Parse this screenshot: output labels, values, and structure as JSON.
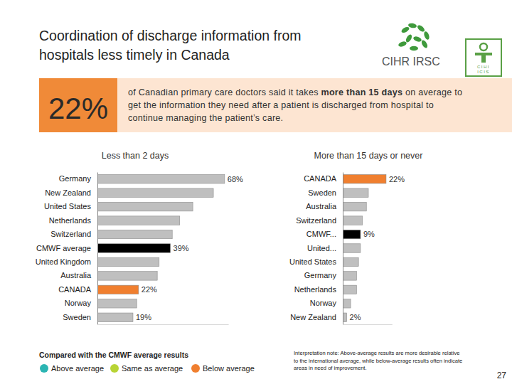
{
  "page": {
    "title": [
      "Coordination of discharge information from",
      "hospitals less timely in Canada"
    ],
    "logos": {
      "cihr": "CIHR IRSC",
      "cihi": [
        "CIHI",
        "ICIS"
      ]
    },
    "callout": {
      "figure": "22%",
      "text_before": "of Canadian primary care doctors said it takes ",
      "text_bold": "more than 15 days",
      "text_after": " on average to get the information they need after a patient is discharged from hospital to continue managing the patient’s care."
    },
    "legend": {
      "title": "Compared with the CMWF average results",
      "items": [
        {
          "label": "Above average",
          "color": "#2bb5b3"
        },
        {
          "label": "Same as average",
          "color": "#b8d435"
        },
        {
          "label": "Below average",
          "color": "#f07f2f"
        }
      ]
    },
    "note": [
      "Interpretation note: Above-average results are more desirable relative",
      "to the international average, while below-average results often indicate",
      "areas in need of improvement."
    ],
    "page_number": 27
  },
  "chart_data": [
    {
      "type": "bar",
      "orientation": "horizontal",
      "title": "Less than 2 days",
      "categories": [
        "Germany",
        "New Zealand",
        "United States",
        "Netherlands",
        "Switzerland",
        "CMWF average",
        "United Kingdom",
        "Australia",
        "CANADA",
        "Norway",
        "Sweden"
      ],
      "values": [
        68,
        62,
        51,
        44,
        40,
        39,
        33,
        32,
        22,
        21,
        19
      ],
      "value_labels": [
        "68%",
        null,
        null,
        null,
        null,
        "39%",
        null,
        null,
        "22%",
        null,
        "19%"
      ],
      "colors": [
        "#bfbfbf",
        "#bfbfbf",
        "#bfbfbf",
        "#bfbfbf",
        "#bfbfbf",
        "#000000",
        "#bfbfbf",
        "#bfbfbf",
        "#f07f2f",
        "#bfbfbf",
        "#bfbfbf"
      ],
      "xlim": [
        0,
        70
      ],
      "data_labels": true,
      "tick_labels": "y",
      "grid": false
    },
    {
      "type": "bar",
      "orientation": "horizontal",
      "title": "More than 15 days or never",
      "categories": [
        "CANADA",
        "Sweden",
        "Australia",
        "Switzerland",
        "CMWF...",
        "United...",
        "United States",
        "Germany",
        "Netherlands",
        "Norway",
        "New Zealand"
      ],
      "values": [
        22,
        13,
        12,
        10,
        9,
        9,
        8,
        7,
        7,
        4,
        2
      ],
      "value_labels": [
        "22%",
        null,
        null,
        null,
        "9%",
        null,
        null,
        null,
        null,
        null,
        "2%"
      ],
      "colors": [
        "#f07f2f",
        "#bfbfbf",
        "#bfbfbf",
        "#bfbfbf",
        "#000000",
        "#bfbfbf",
        "#bfbfbf",
        "#bfbfbf",
        "#bfbfbf",
        "#bfbfbf",
        "#bfbfbf"
      ],
      "xlim": [
        0,
        25
      ],
      "data_labels": true,
      "tick_labels": "y",
      "grid": false
    }
  ]
}
